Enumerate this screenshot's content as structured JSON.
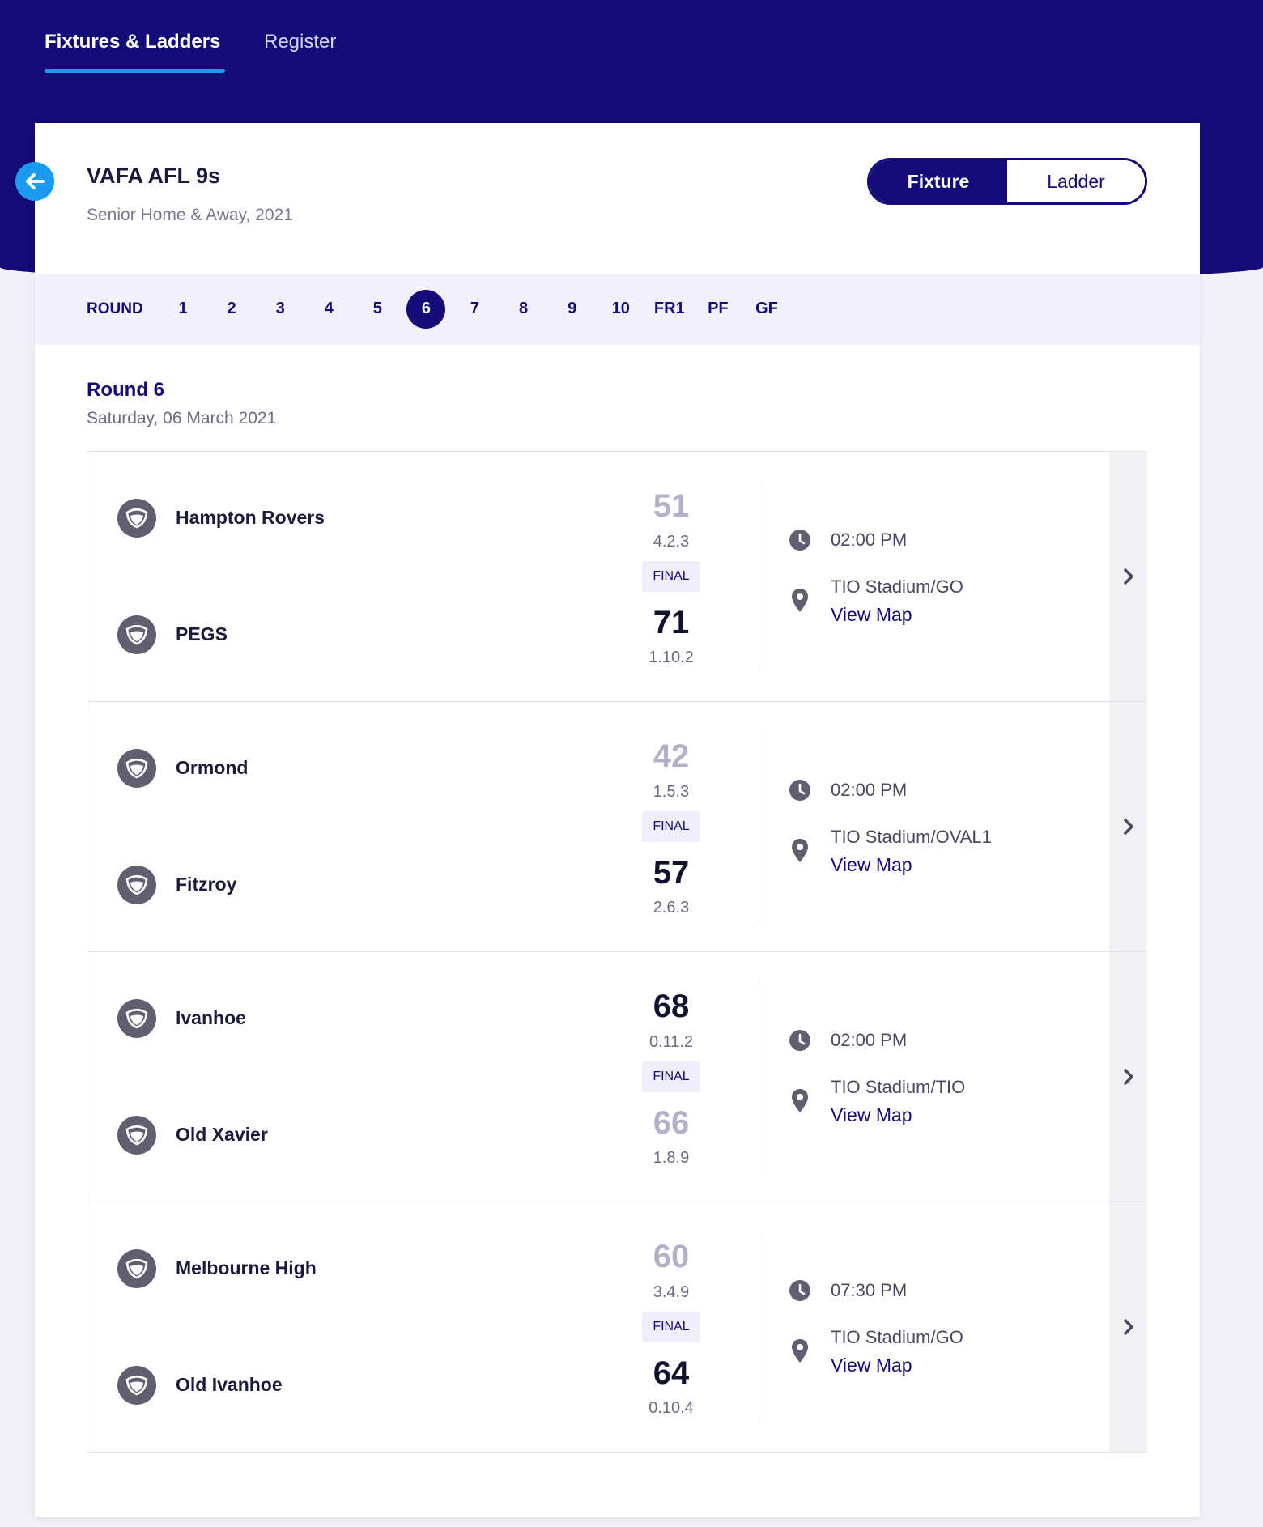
{
  "nav": {
    "tabs": [
      "Fixtures & Ladders",
      "Register"
    ],
    "active": 0
  },
  "header": {
    "title": "VAFA AFL 9s",
    "subtitle": "Senior Home & Away, 2021",
    "toggle": [
      "Fixture",
      "Ladder"
    ],
    "toggle_active": 0
  },
  "rounds": {
    "label": "ROUND",
    "items": [
      "1",
      "2",
      "3",
      "4",
      "5",
      "6",
      "7",
      "8",
      "9",
      "10",
      "FR1",
      "PF",
      "GF"
    ],
    "selected": 5
  },
  "round": {
    "title": "Round 6",
    "date": "Saturday, 06 March 2021"
  },
  "matches": [
    {
      "home": {
        "team": "Hampton Rovers",
        "score": 51,
        "breakdown": "4.2.3"
      },
      "away": {
        "team": "PEGS",
        "score": 71,
        "breakdown": "1.10.2"
      },
      "status": "FINAL",
      "time": "02:00 PM",
      "venue": "TIO Stadium/GO",
      "map": "View Map"
    },
    {
      "home": {
        "team": "Ormond",
        "score": 42,
        "breakdown": "1.5.3"
      },
      "away": {
        "team": "Fitzroy",
        "score": 57,
        "breakdown": "2.6.3"
      },
      "status": "FINAL",
      "time": "02:00 PM",
      "venue": "TIO Stadium/OVAL1",
      "map": "View Map"
    },
    {
      "home": {
        "team": "Ivanhoe",
        "score": 68,
        "breakdown": "0.11.2"
      },
      "away": {
        "team": "Old Xavier",
        "score": 66,
        "breakdown": "1.8.9"
      },
      "status": "FINAL",
      "time": "02:00 PM",
      "venue": "TIO Stadium/TIO",
      "map": "View Map"
    },
    {
      "home": {
        "team": "Melbourne High",
        "score": 60,
        "breakdown": "3.4.9"
      },
      "away": {
        "team": "Old Ivanhoe",
        "score": 64,
        "breakdown": "0.10.4"
      },
      "status": "FINAL",
      "time": "07:30 PM",
      "venue": "TIO Stadium/GO",
      "map": "View Map"
    }
  ]
}
